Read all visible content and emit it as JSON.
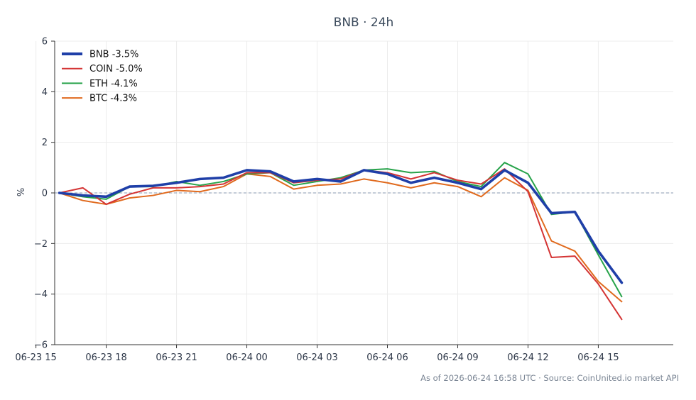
{
  "chart_data": {
    "type": "line",
    "title": "BNB · 24h",
    "ylabel": "%",
    "xlabel": "",
    "ylim": [
      -6,
      6
    ],
    "yticks": [
      -6,
      -4,
      -2,
      0,
      2,
      4,
      6
    ],
    "ytick_labels": [
      "−6",
      "−4",
      "−2",
      "0",
      "2",
      "4",
      "6"
    ],
    "xlim": [
      -0.2,
      26.2
    ],
    "xticks": [
      -1,
      2,
      5,
      8,
      11,
      14,
      17,
      20,
      23
    ],
    "xtick_labels": [
      "06-23 15",
      "06-23 18",
      "06-23 21",
      "06-24 00",
      "06-24 03",
      "06-24 06",
      "06-24 09",
      "06-24 12",
      "06-24 15"
    ],
    "x_unit": "hours since 06-23 16:00",
    "grid": true,
    "legend_position": "top-left",
    "zero_line": true,
    "series": [
      {
        "name": "BNB -3.5%",
        "color": "#1f3fa8",
        "values": [
          0.0,
          -0.1,
          -0.15,
          0.25,
          0.28,
          0.4,
          0.55,
          0.6,
          0.9,
          0.85,
          0.45,
          0.55,
          0.45,
          0.9,
          0.75,
          0.4,
          0.6,
          0.4,
          0.15,
          0.9,
          0.4,
          -0.8,
          -0.75,
          -2.3,
          -3.55
        ]
      },
      {
        "name": "COIN -5.0%",
        "color": "#d43434",
        "values": [
          0.0,
          0.2,
          -0.45,
          -0.05,
          0.2,
          0.2,
          0.25,
          0.35,
          0.8,
          0.8,
          0.4,
          0.5,
          0.55,
          0.9,
          0.8,
          0.55,
          0.8,
          0.5,
          0.35,
          0.95,
          0.05,
          -2.55,
          -2.5,
          -3.6,
          -5.0
        ]
      },
      {
        "name": "ETH -4.1%",
        "color": "#27a34a",
        "values": [
          0.0,
          -0.15,
          -0.25,
          0.25,
          0.25,
          0.45,
          0.3,
          0.45,
          0.75,
          0.8,
          0.3,
          0.45,
          0.6,
          0.9,
          0.95,
          0.8,
          0.85,
          0.45,
          0.25,
          1.2,
          0.75,
          -0.85,
          -0.75,
          -2.45,
          -4.1
        ]
      },
      {
        "name": "BTC -4.3%",
        "color": "#e06a1e",
        "values": [
          0.0,
          -0.3,
          -0.45,
          -0.2,
          -0.1,
          0.1,
          0.05,
          0.25,
          0.75,
          0.65,
          0.15,
          0.3,
          0.35,
          0.55,
          0.4,
          0.2,
          0.4,
          0.25,
          -0.15,
          0.6,
          0.1,
          -1.9,
          -2.3,
          -3.5,
          -4.3
        ]
      }
    ]
  },
  "footer": "As of 2026-06-24 16:58 UTC · Source: CoinUnited.io market API"
}
